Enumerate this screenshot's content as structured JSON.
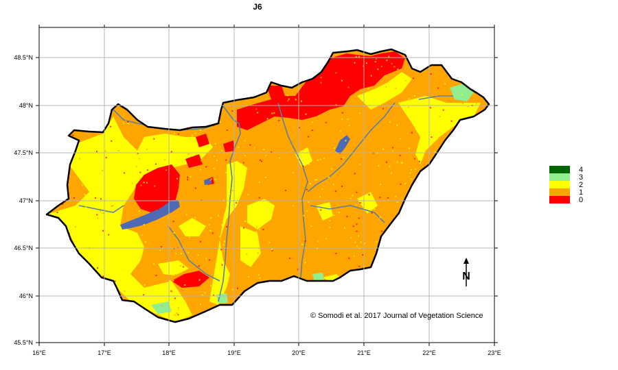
{
  "title": "J6",
  "credit": "© Somodi et al. 2017 Journal of Vegetation Science",
  "north_label": "N",
  "x_ticks": [
    "16°E",
    "17°E",
    "18°E",
    "19°E",
    "20°E",
    "21°E",
    "22°E",
    "23°E"
  ],
  "y_ticks": [
    "48.5°N",
    "48°N",
    "47.5°N",
    "47°N",
    "46.5°N",
    "46°N",
    "45.5°N"
  ],
  "legend": [
    {
      "label": "4",
      "color": "#006400"
    },
    {
      "label": "3",
      "color": "#90ee90"
    },
    {
      "label": "2",
      "color": "#ffff00"
    },
    {
      "label": "1",
      "color": "#ffa500"
    },
    {
      "label": "0",
      "color": "#ff0000"
    }
  ],
  "colors": {
    "class_1": "#ffa500",
    "class_2": "#ffff00",
    "class_0": "#ff0000",
    "class_3": "#90ee90",
    "water": "#4f6ab4",
    "river": "#5a7fa0",
    "grid": "#b4b4b4"
  }
}
